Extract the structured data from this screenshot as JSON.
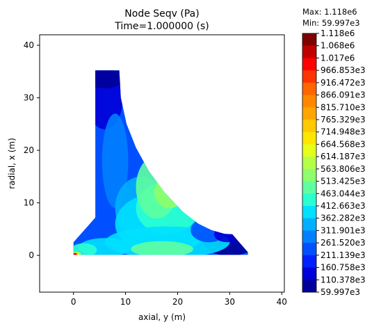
{
  "chart_data": {
    "type": "contour",
    "title_line1": "Node Seqv (Pa)",
    "title_line2": "Time=1.000000 (s)",
    "xlabel": "axial, y (m)",
    "ylabel": "radial, x (m)",
    "xlim": [
      -6.5,
      40.5
    ],
    "ylim": [
      -7,
      42
    ],
    "xticks": [
      0,
      10,
      20,
      30,
      40
    ],
    "yticks": [
      0,
      10,
      20,
      30,
      40
    ],
    "colorbar": {
      "max_label": "Max: 1.118e6",
      "min_label": "Min: 59.997e3",
      "levels": [
        "1.118e6",
        "1.068e6",
        "1.017e6",
        "966.853e3",
        "916.472e3",
        "866.091e3",
        "815.710e3",
        "765.329e3",
        "714.948e3",
        "664.568e3",
        "614.187e3",
        "563.806e3",
        "513.425e3",
        "463.044e3",
        "412.663e3",
        "362.282e3",
        "311.901e3",
        "261.520e3",
        "211.139e3",
        "160.758e3",
        "110.378e3",
        "59.997e3"
      ],
      "colors": [
        "#800000",
        "#c00000",
        "#ff0000",
        "#ff3300",
        "#ff6600",
        "#ff8800",
        "#ffa500",
        "#ffc800",
        "#ffe600",
        "#e6ff1a",
        "#b4ff48",
        "#8dff6a",
        "#5fffa0",
        "#2affd0",
        "#00e0ff",
        "#00b0ff",
        "#0080ff",
        "#0050ff",
        "#0020ff",
        "#0000d8",
        "#00009a"
      ]
    },
    "domain_outline": [
      [
        0,
        2.5
      ],
      [
        4.2,
        7.2
      ],
      [
        4.2,
        35.2
      ],
      [
        8.8,
        35.2
      ],
      [
        9.1,
        30
      ],
      [
        10.2,
        25
      ],
      [
        12.0,
        20.5
      ],
      [
        14.5,
        16
      ],
      [
        17.5,
        12
      ],
      [
        21,
        8.3
      ],
      [
        24,
        6
      ],
      [
        26.5,
        4.8
      ],
      [
        29,
        4.1
      ],
      [
        30.5,
        4.0
      ],
      [
        33.5,
        0.6
      ],
      [
        33.5,
        0.1
      ],
      [
        0,
        0.1
      ]
    ]
  }
}
